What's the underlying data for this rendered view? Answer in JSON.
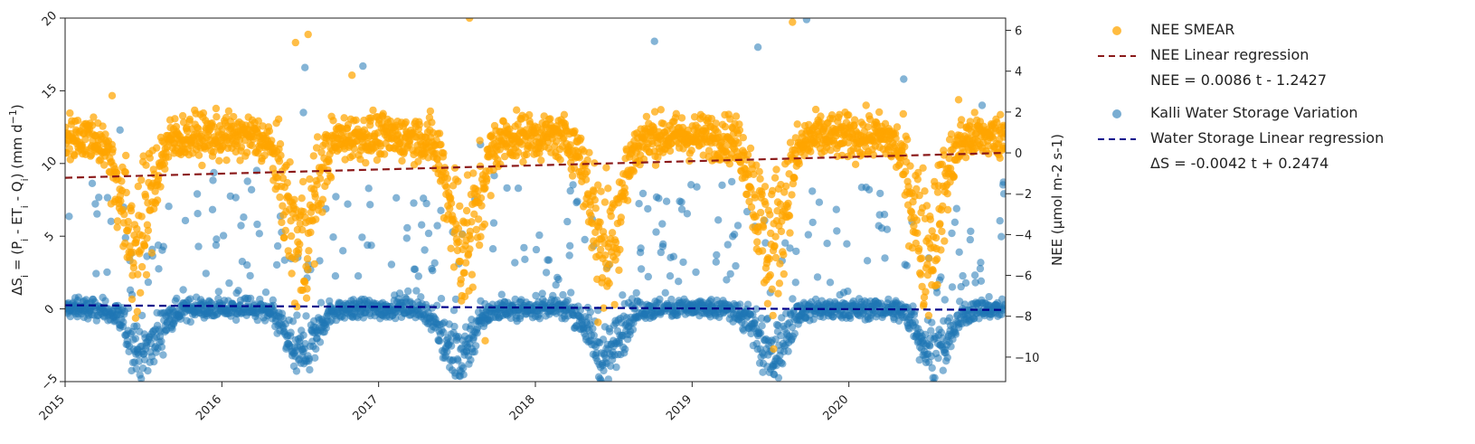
{
  "colors": {
    "nee_points": "#FFA500",
    "nee_regression": "#8B1A1A",
    "storage_points": "#1F77B4",
    "storage_regression": "#00008B"
  },
  "legend": {
    "nee_points_label": "NEE SMEAR",
    "nee_regression_label": "NEE Linear regression",
    "nee_equation": "NEE = 0.0086 t - 1.2427",
    "storage_points_label": "Kalli Water Storage Variation",
    "storage_regression_label": "Water Storage Linear regression",
    "storage_equation": "ΔS = -0.0042 t + 0.2474"
  },
  "chart_data": {
    "type": "scatter",
    "x_axis": {
      "min": 2015.0,
      "max": 2021.0,
      "ticks": [
        2015,
        2016,
        2017,
        2018,
        2019,
        2020
      ],
      "tick_labels": [
        "2015",
        "2016",
        "2017",
        "2018",
        "2019",
        "2020"
      ],
      "tick_label_rotation": "45°"
    },
    "y_left": {
      "label_parts": [
        "ΔS",
        "i",
        " = (P",
        "i",
        " - ET",
        "i",
        " - Q",
        "i",
        ") (mm d",
        "−1",
        ")"
      ],
      "min": -5,
      "max": 20,
      "ticks": [
        -5,
        0,
        5,
        10,
        15,
        20
      ],
      "tick_labels": [
        "−5",
        "0",
        "5",
        "10",
        "15",
        "20"
      ],
      "tick_label_rotation": "45°"
    },
    "y_right": {
      "label": "NEE (µmol m-2 s-1)",
      "min": -11.2,
      "max": 6.6,
      "ticks": [
        -10,
        -8,
        -6,
        -4,
        -2,
        0,
        2,
        4,
        6
      ],
      "tick_labels": [
        "−10",
        "−8",
        "−6",
        "−4",
        "−2",
        "0",
        "2",
        "4",
        "6"
      ]
    },
    "series": [
      {
        "name": "NEE SMEAR",
        "axis": "right",
        "kind": "scatter",
        "approx_daily_pattern": {
          "winter_level": 0.8,
          "summer_minimum_level": -4.5,
          "summer_trough_dates": [
            2015.45,
            2016.5,
            2017.55,
            2018.45,
            2019.5,
            2020.5
          ],
          "scatter_spread": 1.3,
          "notable_points": [
            [
              2015.3,
              2.8
            ],
            [
              2016.47,
              5.4
            ],
            [
              2016.55,
              5.8
            ],
            [
              2016.83,
              3.8
            ],
            [
              2017.58,
              6.6
            ],
            [
              2017.68,
              -9.2
            ],
            [
              2018.4,
              -8.3
            ],
            [
              2019.52,
              -9.6
            ],
            [
              2019.64,
              6.4
            ],
            [
              2020.7,
              2.6
            ]
          ]
        }
      },
      {
        "name": "Kalli Water Storage Variation",
        "axis": "left",
        "kind": "scatter",
        "approx_daily_pattern": {
          "winter_level": 0.0,
          "summer_minimum_level": -3.2,
          "summer_trough_dates": [
            2015.5,
            2016.5,
            2017.5,
            2018.45,
            2019.5,
            2020.55
          ],
          "scatter_spread": 0.8,
          "notable_points": [
            [
              2016.53,
              16.6
            ],
            [
              2016.9,
              16.7
            ],
            [
              2018.76,
              18.4
            ],
            [
              2019.42,
              18.0
            ],
            [
              2019.73,
              19.9
            ],
            [
              2017.65,
              11.3
            ],
            [
              2016.52,
              13.5
            ],
            [
              2020.35,
              15.8
            ],
            [
              2020.85,
              14.0
            ],
            [
              2015.35,
              12.3
            ]
          ]
        }
      },
      {
        "name": "NEE Linear regression",
        "axis": "right",
        "kind": "line",
        "x": [
          2015.0,
          2021.0
        ],
        "values": [
          -1.22,
          0.0
        ]
      },
      {
        "name": "Water Storage Linear regression",
        "axis": "left",
        "kind": "line",
        "x": [
          2015.0,
          2021.0
        ],
        "values": [
          0.25,
          -0.07
        ]
      }
    ],
    "grid": false,
    "legend_position": "outside-right"
  }
}
